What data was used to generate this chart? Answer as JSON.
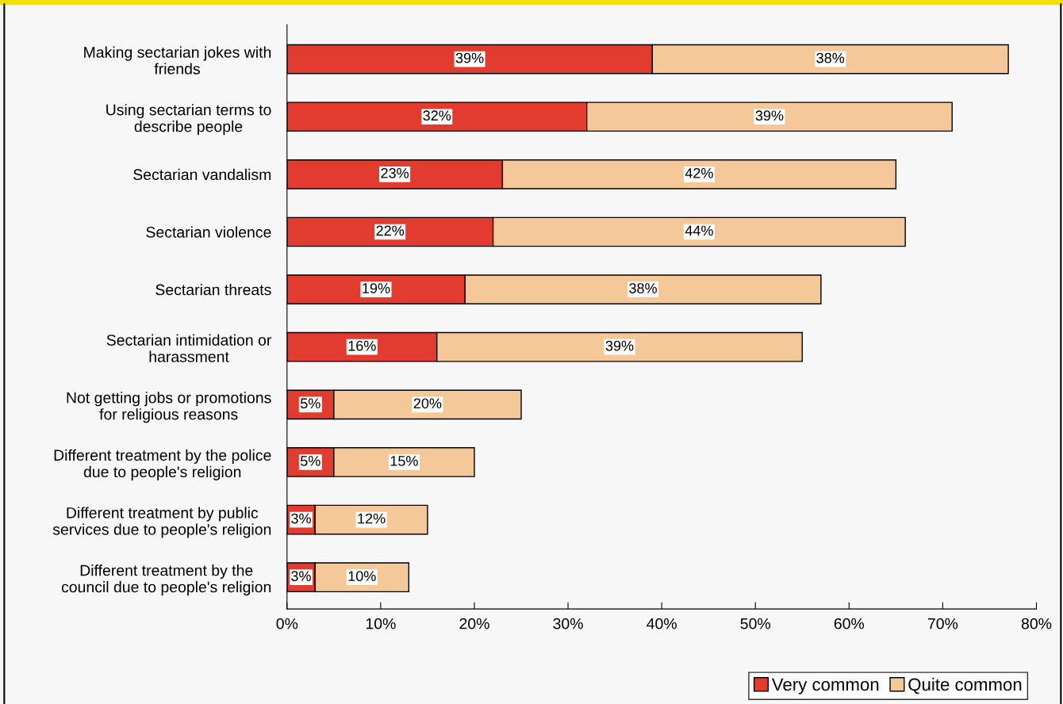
{
  "chart_data": {
    "type": "bar",
    "orientation": "horizontal",
    "stacked": true,
    "categories": [
      "Making sectarian jokes with\nfriends",
      "Using sectarian terms to\ndescribe people",
      "Sectarian vandalism",
      "Sectarian violence",
      "Sectarian threats",
      "Sectarian intimidation or\nharassment",
      "Not getting jobs or promotions\nfor religious reasons",
      "Different treatment by the police\ndue to people's religion",
      "Different treatment by public\nservices due to people's religion",
      "Different treatment by the\ncouncil due to people's religion"
    ],
    "series": [
      {
        "name": "Very common",
        "color": "#e23b2f",
        "values": [
          39,
          32,
          23,
          22,
          19,
          16,
          5,
          5,
          3,
          3
        ],
        "value_labels": [
          "39%",
          "32%",
          "23%",
          "22%",
          "19%",
          "16%",
          "5%",
          "5%",
          "3%",
          "3%"
        ]
      },
      {
        "name": "Quite common",
        "color": "#f5c89a",
        "values": [
          38,
          39,
          42,
          44,
          38,
          39,
          20,
          15,
          12,
          10
        ],
        "value_labels": [
          "38%",
          "39%",
          "42%",
          "44%",
          "38%",
          "39%",
          "20%",
          "15%",
          "12%",
          "10%"
        ]
      }
    ],
    "xlim": [
      0,
      80
    ],
    "xticks": [
      {
        "value": 0,
        "label": "0%"
      },
      {
        "value": 10,
        "label": "10%"
      },
      {
        "value": 20,
        "label": "20%"
      },
      {
        "value": 30,
        "label": "30%"
      },
      {
        "value": 40,
        "label": "40%"
      },
      {
        "value": 50,
        "label": "50%"
      },
      {
        "value": 60,
        "label": "60%"
      },
      {
        "value": 70,
        "label": "70%"
      },
      {
        "value": 80,
        "label": "80%"
      }
    ],
    "grid": false,
    "legend": "bottom right"
  }
}
